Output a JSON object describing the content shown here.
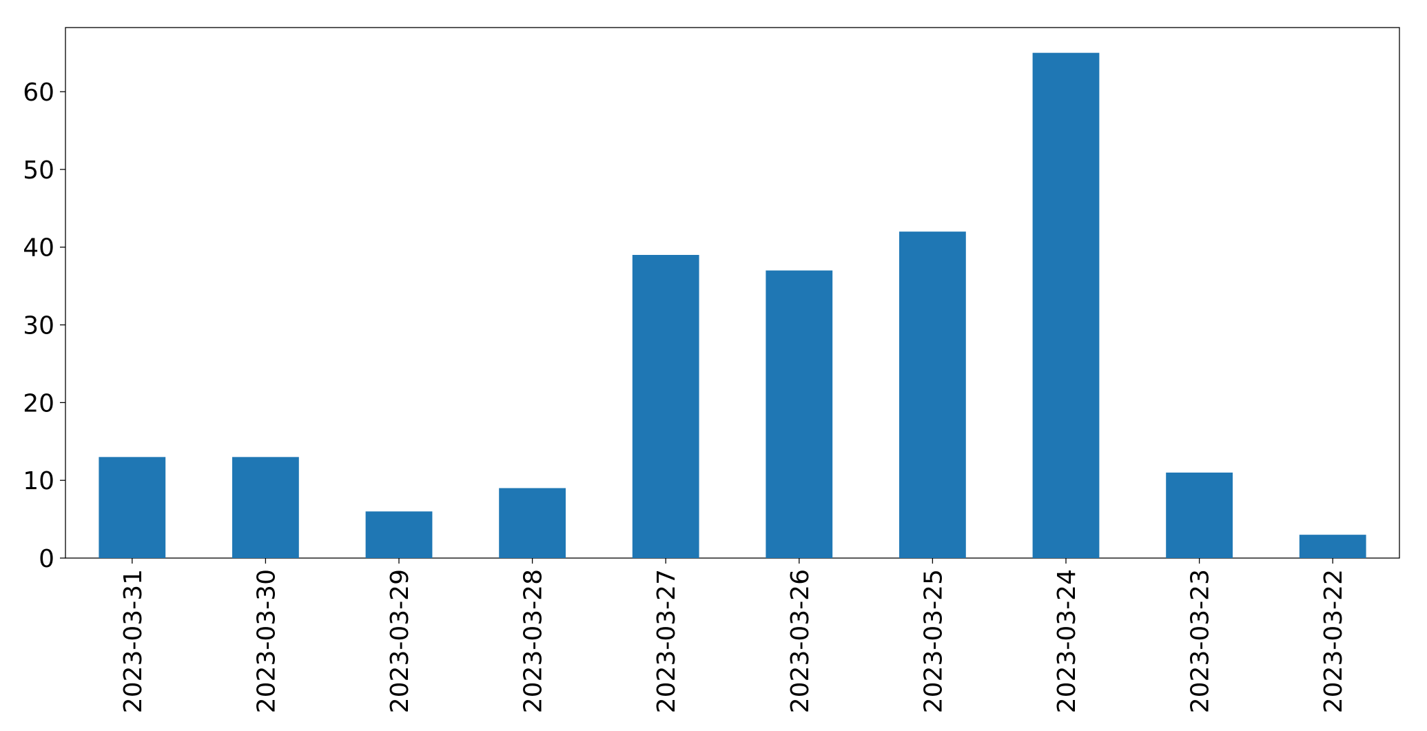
{
  "chart_data": {
    "type": "bar",
    "categories": [
      "2023-03-31",
      "2023-03-30",
      "2023-03-29",
      "2023-03-28",
      "2023-03-27",
      "2023-03-26",
      "2023-03-25",
      "2023-03-24",
      "2023-03-23",
      "2023-03-22"
    ],
    "values": [
      13,
      13,
      6,
      9,
      39,
      37,
      42,
      65,
      11,
      3
    ],
    "color": "#1f77b4",
    "ylim": [
      0,
      68.25
    ],
    "yticks": [
      0,
      10,
      20,
      30,
      40,
      50,
      60
    ],
    "grid": false
  }
}
